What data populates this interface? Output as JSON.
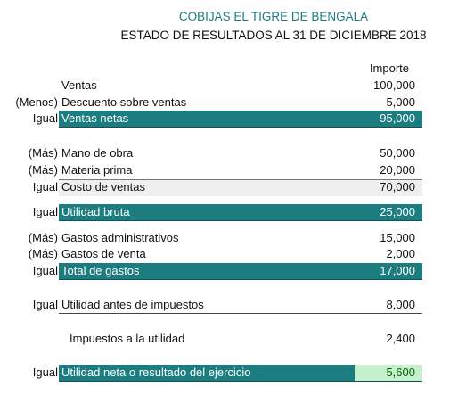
{
  "header": {
    "title": "COBIJAS EL TIGRE DE BENGALA",
    "subtitle": "ESTADO DE RESULTADOS AL 31 DE DICIEMBRE 2018",
    "column": "Importe"
  },
  "rows": [
    {
      "label": "Ventas",
      "amount": "100,000"
    },
    {
      "prefix": "(Menos)",
      "label": "Descuento sobre ventas",
      "amount": "5,000"
    },
    {
      "prefix": "Igual",
      "label": "Ventas netas",
      "amount": "95,000"
    },
    {
      "prefix": "(Más)",
      "label": "Mano de obra",
      "amount": "50,000"
    },
    {
      "prefix": "(Más)",
      "label": "Materia prima",
      "amount": "20,000"
    },
    {
      "prefix": "Igual",
      "label": "Costo de ventas",
      "amount": "70,000"
    },
    {
      "prefix": "Igual",
      "label": "Utilidad bruta",
      "amount": "25,000"
    },
    {
      "prefix": "(Más)",
      "label": "Gastos administrativos",
      "amount": "15,000"
    },
    {
      "prefix": "(Más)",
      "label": "Gastos de venta",
      "amount": "2,000"
    },
    {
      "prefix": "Igual",
      "label": "Total de gastos",
      "amount": "17,000"
    },
    {
      "prefix": "Igual",
      "label": "Utilidad antes de impuestos",
      "amount": "8,000"
    },
    {
      "label": "Impuestos a la utilidad",
      "amount": "2,400"
    },
    {
      "prefix": "Igual",
      "label": "Utilidad neta o resultado del ejercicio",
      "amount": "5,600"
    }
  ]
}
